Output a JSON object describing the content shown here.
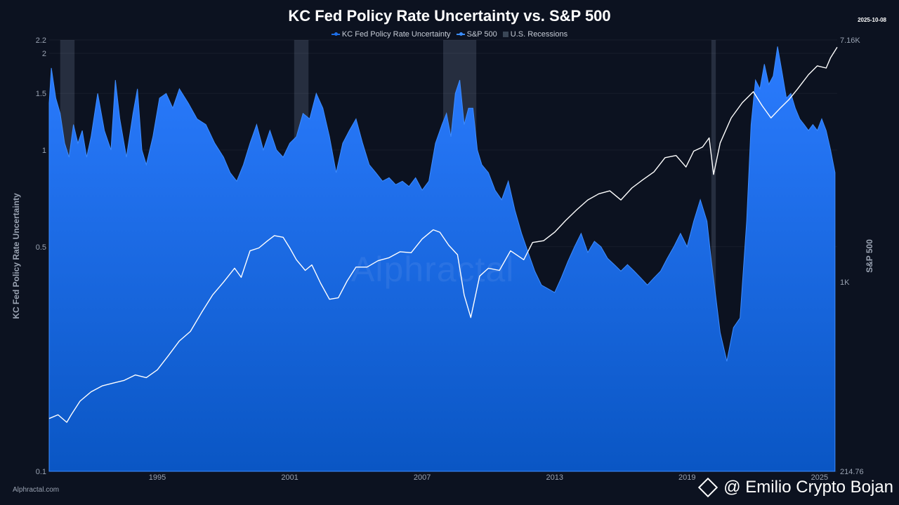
{
  "header": {
    "title": "KC Fed Policy Rate Uncertainty vs. S&P 500",
    "date": "2025-10-08"
  },
  "legend": {
    "items": [
      {
        "label": "KC Fed Policy Rate Uncertainty",
        "color": "#1e6fe8"
      },
      {
        "label": "S&P 500",
        "color": "#3a8dff"
      },
      {
        "label": "U.S. Recessions",
        "color": "#3a4656"
      }
    ]
  },
  "footer": {
    "credit": "Alphractal.com",
    "watermark": "Alphractal",
    "author": "@ Emilio Crypto Bojan"
  },
  "chart_data": {
    "type": "area",
    "title": "KC Fed Policy Rate Uncertainty vs. S&P 500",
    "xlabel": "",
    "ylabel_left": "KC Fed Policy Rate Uncertainty",
    "ylabel_right": "S&P 500",
    "xlim": [
      1990.1,
      2025.8
    ],
    "ylim_left": [
      0.1,
      2.2
    ],
    "y_left_scale": "log",
    "y_left_ticks": [
      {
        "value": 0.1,
        "label": "0.1"
      },
      {
        "value": 0.5,
        "label": "0.5"
      },
      {
        "value": 1,
        "label": "1"
      },
      {
        "value": 1.5,
        "label": "1.5"
      },
      {
        "value": 2,
        "label": "2"
      },
      {
        "value": 2.2,
        "label": "2.2"
      }
    ],
    "y_right_scale": "log",
    "ylim_right": [
      214.76,
      7160
    ],
    "y_right_ticks": [
      {
        "value": 214.76,
        "label": "214.76"
      },
      {
        "value": 1000,
        "label": "1K"
      },
      {
        "value": 7160,
        "label": "7.16K"
      }
    ],
    "x_ticks": [
      {
        "value": 1995,
        "label": "1995"
      },
      {
        "value": 2001,
        "label": "2001"
      },
      {
        "value": 2007,
        "label": "2007"
      },
      {
        "value": 2013,
        "label": "2013"
      },
      {
        "value": 2019,
        "label": "2019"
      },
      {
        "value": 2025,
        "label": "2025"
      }
    ],
    "recessions": [
      {
        "start": 1990.6,
        "end": 1991.25
      },
      {
        "start": 2001.2,
        "end": 2001.85
      },
      {
        "start": 2007.95,
        "end": 2009.45
      },
      {
        "start": 2020.1,
        "end": 2020.3
      }
    ],
    "series": [
      {
        "name": "KC Fed Policy Rate Uncertainty",
        "kind": "area",
        "color": "#1e6fe8",
        "x": [
          1990.1,
          1990.2,
          1990.4,
          1990.6,
          1990.8,
          1991.0,
          1991.2,
          1991.4,
          1991.6,
          1991.8,
          1992.0,
          1992.3,
          1992.6,
          1992.9,
          1993.1,
          1993.3,
          1993.6,
          1993.9,
          1994.1,
          1994.3,
          1994.5,
          1994.8,
          1995.1,
          1995.4,
          1995.7,
          1996.0,
          1996.4,
          1996.8,
          1997.2,
          1997.6,
          1998.0,
          1998.3,
          1998.6,
          1998.9,
          1999.2,
          1999.5,
          1999.8,
          2000.1,
          2000.4,
          2000.7,
          2001.0,
          2001.3,
          2001.6,
          2001.9,
          2002.2,
          2002.5,
          2002.8,
          2003.1,
          2003.4,
          2003.7,
          2004.0,
          2004.3,
          2004.6,
          2004.9,
          2005.2,
          2005.5,
          2005.8,
          2006.1,
          2006.4,
          2006.7,
          2007.0,
          2007.3,
          2007.6,
          2007.9,
          2008.1,
          2008.3,
          2008.5,
          2008.7,
          2008.9,
          2009.1,
          2009.3,
          2009.5,
          2009.7,
          2010.0,
          2010.3,
          2010.6,
          2010.9,
          2011.2,
          2011.5,
          2011.8,
          2012.1,
          2012.4,
          2012.7,
          2013.0,
          2013.3,
          2013.6,
          2013.9,
          2014.2,
          2014.5,
          2014.8,
          2015.1,
          2015.4,
          2015.7,
          2016.0,
          2016.3,
          2016.6,
          2016.9,
          2017.2,
          2017.5,
          2017.8,
          2018.1,
          2018.4,
          2018.7,
          2019.0,
          2019.3,
          2019.6,
          2019.9,
          2020.1,
          2020.3,
          2020.5,
          2020.8,
          2021.1,
          2021.4,
          2021.7,
          2021.9,
          2022.1,
          2022.3,
          2022.5,
          2022.7,
          2022.9,
          2023.1,
          2023.3,
          2023.5,
          2023.7,
          2023.9,
          2024.1,
          2024.3,
          2024.5,
          2024.7,
          2024.9,
          2025.1,
          2025.3,
          2025.5,
          2025.7
        ],
        "y": [
          1.4,
          1.8,
          1.45,
          1.3,
          1.05,
          0.95,
          1.2,
          1.05,
          1.15,
          0.95,
          1.1,
          1.5,
          1.15,
          1.0,
          1.65,
          1.25,
          0.95,
          1.3,
          1.55,
          1.0,
          0.9,
          1.1,
          1.45,
          1.5,
          1.35,
          1.55,
          1.4,
          1.25,
          1.2,
          1.05,
          0.95,
          0.85,
          0.8,
          0.9,
          1.05,
          1.2,
          1.0,
          1.15,
          1.0,
          0.95,
          1.05,
          1.1,
          1.3,
          1.25,
          1.5,
          1.35,
          1.1,
          0.85,
          1.05,
          1.15,
          1.25,
          1.05,
          0.9,
          0.85,
          0.8,
          0.82,
          0.78,
          0.8,
          0.77,
          0.82,
          0.75,
          0.8,
          1.05,
          1.2,
          1.3,
          1.1,
          1.5,
          1.65,
          1.2,
          1.35,
          1.35,
          1.0,
          0.9,
          0.85,
          0.75,
          0.7,
          0.8,
          0.65,
          0.55,
          0.48,
          0.42,
          0.38,
          0.37,
          0.36,
          0.4,
          0.45,
          0.5,
          0.55,
          0.48,
          0.52,
          0.5,
          0.46,
          0.44,
          0.42,
          0.44,
          0.42,
          0.4,
          0.38,
          0.4,
          0.42,
          0.46,
          0.5,
          0.55,
          0.5,
          0.6,
          0.7,
          0.6,
          0.45,
          0.35,
          0.27,
          0.22,
          0.28,
          0.3,
          0.6,
          1.2,
          1.65,
          1.55,
          1.85,
          1.6,
          1.7,
          2.1,
          1.75,
          1.45,
          1.5,
          1.35,
          1.25,
          1.2,
          1.15,
          1.2,
          1.15,
          1.25,
          1.15,
          1.0,
          0.85
        ]
      },
      {
        "name": "S&P 500",
        "kind": "line",
        "color": "#ffffff",
        "x": [
          1990.1,
          1990.5,
          1990.9,
          1991.1,
          1991.5,
          1992.0,
          1992.5,
          1993.0,
          1993.5,
          1994.0,
          1994.5,
          1995.0,
          1995.5,
          1996.0,
          1996.5,
          1997.0,
          1997.5,
          1998.0,
          1998.5,
          1998.8,
          1999.2,
          1999.6,
          2000.0,
          2000.3,
          2000.7,
          2001.0,
          2001.3,
          2001.7,
          2002.0,
          2002.4,
          2002.8,
          2003.2,
          2003.6,
          2004.0,
          2004.5,
          2005.0,
          2005.5,
          2006.0,
          2006.5,
          2007.0,
          2007.5,
          2007.8,
          2008.2,
          2008.6,
          2008.9,
          2009.2,
          2009.6,
          2010.0,
          2010.5,
          2011.0,
          2011.6,
          2012.0,
          2012.5,
          2013.0,
          2013.5,
          2014.0,
          2014.5,
          2015.0,
          2015.5,
          2016.0,
          2016.5,
          2017.0,
          2017.5,
          2018.0,
          2018.5,
          2018.95,
          2019.3,
          2019.7,
          2020.0,
          2020.2,
          2020.5,
          2021.0,
          2021.5,
          2022.0,
          2022.4,
          2022.8,
          2023.2,
          2023.6,
          2024.0,
          2024.5,
          2024.9,
          2025.3,
          2025.5,
          2025.8
        ],
        "y": [
          330,
          340,
          320,
          340,
          380,
          410,
          430,
          440,
          450,
          470,
          460,
          490,
          550,
          620,
          670,
          780,
          900,
          1000,
          1120,
          1040,
          1290,
          1320,
          1400,
          1460,
          1440,
          1320,
          1200,
          1100,
          1150,
          990,
          870,
          880,
          1010,
          1130,
          1130,
          1190,
          1220,
          1280,
          1270,
          1420,
          1530,
          1500,
          1350,
          1250,
          900,
          750,
          1050,
          1120,
          1100,
          1290,
          1200,
          1380,
          1400,
          1500,
          1650,
          1800,
          1950,
          2050,
          2100,
          1950,
          2150,
          2300,
          2450,
          2750,
          2800,
          2550,
          2900,
          3000,
          3230,
          2400,
          3100,
          3800,
          4300,
          4700,
          4200,
          3800,
          4100,
          4400,
          4800,
          5400,
          5800,
          5700,
          6200,
          6750
        ]
      }
    ]
  }
}
